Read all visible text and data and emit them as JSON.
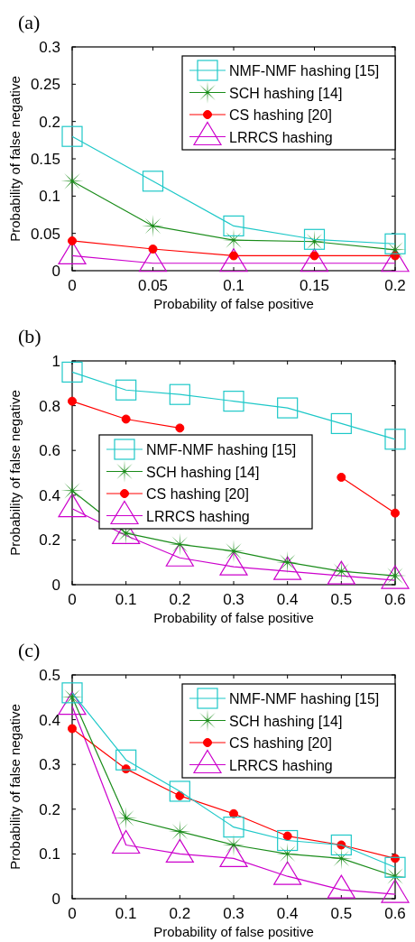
{
  "chart_data": [
    {
      "type": "line",
      "title": "(a)",
      "xlabel": "Probability of false positive",
      "ylabel": "Probability of false negative",
      "x": [
        0,
        0.05,
        0.1,
        0.15,
        0.2
      ],
      "xlim": [
        0,
        0.2
      ],
      "xticks": [
        0,
        0.05,
        0.1,
        0.15,
        0.2
      ],
      "ylim": [
        0,
        0.3
      ],
      "yticks": [
        0,
        0.05,
        0.1,
        0.15,
        0.2,
        0.25,
        0.3
      ],
      "legend": "top right",
      "grid": false,
      "series": [
        {
          "name": "NMF-NMF hashing [15]",
          "color": "#1ec8c8",
          "marker": "square",
          "values": [
            0.18,
            0.12,
            0.06,
            0.042,
            0.036
          ]
        },
        {
          "name": "SCH hashing [14]",
          "color": "#1a8c1a",
          "marker": "star",
          "values": [
            0.12,
            0.06,
            0.041,
            0.039,
            0.028
          ]
        },
        {
          "name": "CS hashing [20]",
          "color": "#ff0000",
          "marker": "circle",
          "values": [
            0.04,
            0.029,
            0.02,
            0.02,
            0.02
          ]
        },
        {
          "name": "LRRCS hashing",
          "color": "#cc00cc",
          "marker": "triangle",
          "values": [
            0.02,
            0.01,
            0.01,
            0.01,
            0.01
          ]
        }
      ]
    },
    {
      "type": "line",
      "title": "(b)",
      "xlabel": "Probability of false positive",
      "ylabel": "Probability of false negative",
      "x": [
        0,
        0.1,
        0.2,
        0.3,
        0.4,
        0.5,
        0.6
      ],
      "xlim": [
        0,
        0.6
      ],
      "xticks": [
        0,
        0.1,
        0.2,
        0.3,
        0.4,
        0.5,
        0.6
      ],
      "ylim": [
        0,
        1
      ],
      "yticks": [
        0,
        0.2,
        0.4,
        0.6,
        0.8,
        1
      ],
      "legend": "center left",
      "grid": false,
      "series": [
        {
          "name": "NMF-NMF hashing [15]",
          "color": "#1ec8c8",
          "marker": "square",
          "values": [
            0.95,
            0.87,
            0.85,
            0.82,
            0.79,
            0.72,
            0.65
          ]
        },
        {
          "name": "SCH hashing [14]",
          "color": "#1a8c1a",
          "marker": "star",
          "values": [
            0.42,
            0.23,
            0.18,
            0.15,
            0.1,
            0.06,
            0.04
          ]
        },
        {
          "name": "CS hashing [20]",
          "color": "#ff0000",
          "marker": "circle",
          "values": [
            0.82,
            0.74,
            0.7,
            null,
            null,
            0.48,
            0.32
          ]
        },
        {
          "name": "LRRCS hashing",
          "color": "#cc00cc",
          "marker": "triangle",
          "values": [
            0.34,
            0.22,
            0.12,
            0.08,
            0.06,
            0.04,
            0.02
          ]
        }
      ]
    },
    {
      "type": "line",
      "title": "(c)",
      "xlabel": "Probability of false positive",
      "ylabel": "Probability of false negative",
      "x": [
        0,
        0.1,
        0.2,
        0.3,
        0.4,
        0.5,
        0.6
      ],
      "xlim": [
        0,
        0.6
      ],
      "xticks": [
        0,
        0.1,
        0.2,
        0.3,
        0.4,
        0.5,
        0.6
      ],
      "ylim": [
        0,
        0.5
      ],
      "yticks": [
        0,
        0.1,
        0.2,
        0.3,
        0.4,
        0.5
      ],
      "legend": "top right",
      "grid": false,
      "series": [
        {
          "name": "NMF-NMF hashing [15]",
          "color": "#1ec8c8",
          "marker": "square",
          "values": [
            0.46,
            0.31,
            0.24,
            0.16,
            0.13,
            0.12,
            0.07
          ]
        },
        {
          "name": "SCH hashing [14]",
          "color": "#1a8c1a",
          "marker": "star",
          "values": [
            0.45,
            0.18,
            0.15,
            0.12,
            0.1,
            0.09,
            0.05
          ]
        },
        {
          "name": "CS hashing [20]",
          "color": "#ff0000",
          "marker": "circle",
          "values": [
            0.38,
            0.29,
            0.23,
            0.19,
            0.14,
            0.12,
            0.09
          ]
        },
        {
          "name": "LRRCS hashing",
          "color": "#cc00cc",
          "marker": "triangle",
          "values": [
            0.43,
            0.12,
            0.1,
            0.09,
            0.05,
            0.02,
            0.01
          ]
        }
      ]
    }
  ]
}
